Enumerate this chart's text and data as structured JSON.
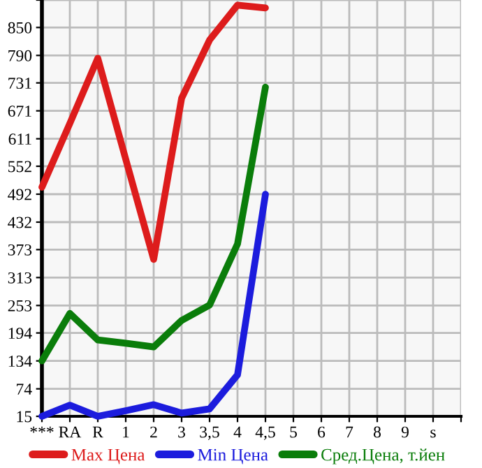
{
  "chart_data": {
    "type": "line",
    "categories": [
      "***",
      "RA",
      "R",
      "1",
      "2",
      "3",
      "3,5",
      "4",
      "4,5",
      "5",
      "6",
      "7",
      "8",
      "9",
      "s",
      null
    ],
    "series": [
      {
        "name": "Max Цена",
        "color": "#dd1c1c",
        "values": [
          507,
          644,
          784,
          567,
          352,
          698,
          823,
          898,
          892,
          null,
          null,
          null,
          null,
          null,
          null,
          null
        ]
      },
      {
        "name": "Min Цена",
        "color": "#1c1cdd",
        "values": [
          15,
          39,
          15,
          27,
          40,
          22,
          31,
          104,
          492,
          null,
          null,
          null,
          null,
          null,
          null,
          null
        ]
      },
      {
        "name": "Сред.Цена, т.йен",
        "color": "#0a7d0a",
        "values": [
          134,
          236,
          179,
          172,
          164,
          221,
          254,
          385,
          722,
          null,
          null,
          null,
          null,
          null,
          null,
          null
        ]
      }
    ],
    "ylim": [
      15,
      909
    ],
    "yticks": [
      15,
      74,
      134,
      194,
      253,
      313,
      373,
      432,
      492,
      552,
      611,
      671,
      731,
      790,
      850,
      {
        "value": 909,
        "label": null
      }
    ],
    "grid": true,
    "legend": "bottom",
    "marker": "none",
    "line_style": "solid"
  }
}
